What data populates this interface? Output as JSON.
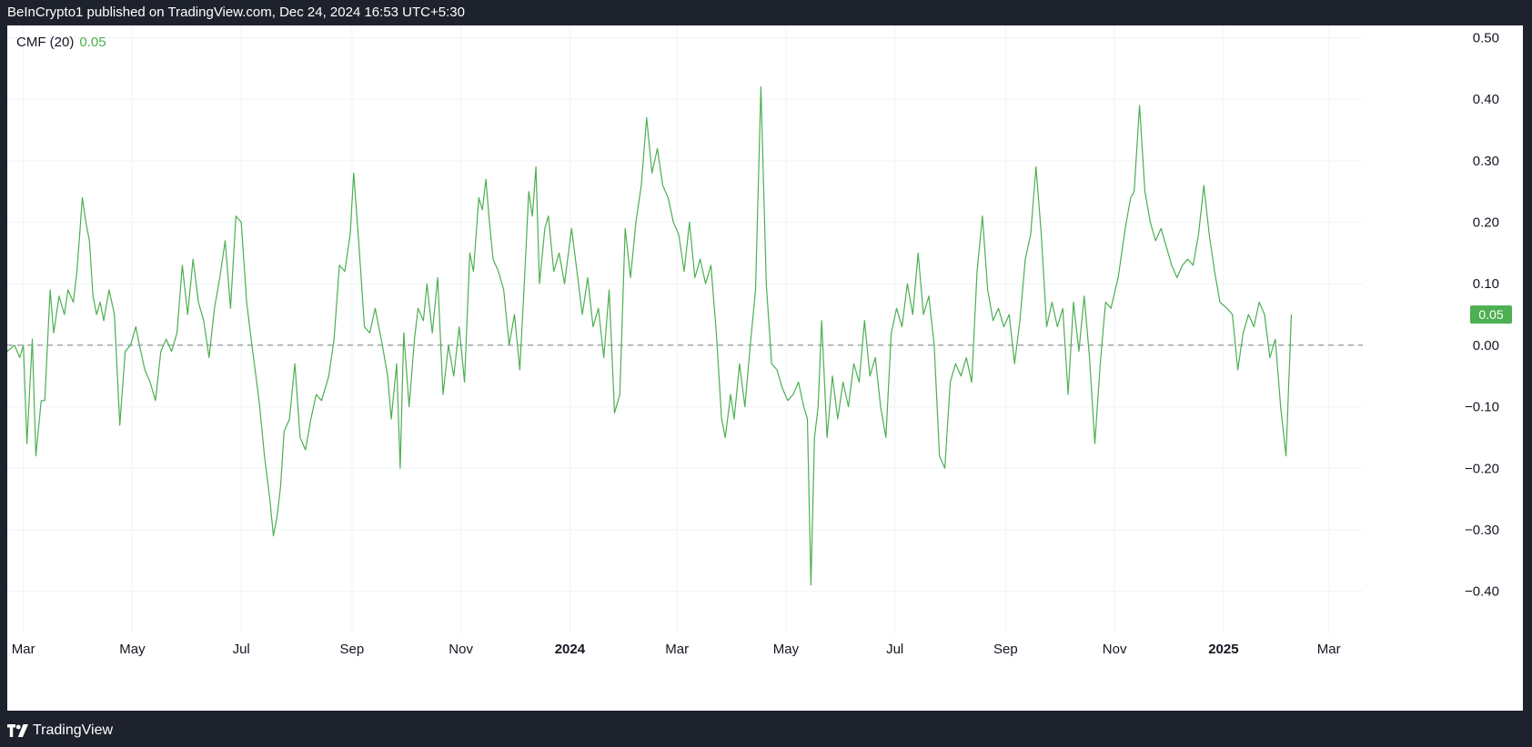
{
  "header": {
    "published_text": "BeInCrypto1 published on TradingView.com, Dec 24, 2024 16:53 UTC+5:30"
  },
  "footer": {
    "brand": "TradingView",
    "logo_icon": "tradingview-logo-icon"
  },
  "chart_data": {
    "type": "line",
    "indicator_label": "CMF (20)",
    "indicator_value": "0.05",
    "current_value_badge": "0.05",
    "line_color": "#4caf50",
    "baseline_value": 0.0,
    "ylim": [
      -0.47,
      0.52
    ],
    "y_ticks": [
      {
        "value": 0.5,
        "label": "0.50"
      },
      {
        "value": 0.4,
        "label": "0.40"
      },
      {
        "value": 0.3,
        "label": "0.30"
      },
      {
        "value": 0.2,
        "label": "0.20"
      },
      {
        "value": 0.1,
        "label": "0.10"
      },
      {
        "value": 0.0,
        "label": "0.00"
      },
      {
        "value": -0.1,
        "label": "−0.10"
      },
      {
        "value": -0.2,
        "label": "−0.20"
      },
      {
        "value": -0.3,
        "label": "−0.30"
      },
      {
        "value": -0.4,
        "label": "−0.40"
      }
    ],
    "x_range": [
      "2023-02-20",
      "2025-03-20"
    ],
    "x_ticks": [
      {
        "date": "2023-03-01",
        "label": "Mar",
        "bold": false
      },
      {
        "date": "2023-05-01",
        "label": "May",
        "bold": false
      },
      {
        "date": "2023-07-01",
        "label": "Jul",
        "bold": false
      },
      {
        "date": "2023-09-01",
        "label": "Sep",
        "bold": false
      },
      {
        "date": "2023-11-01",
        "label": "Nov",
        "bold": false
      },
      {
        "date": "2024-01-01",
        "label": "2024",
        "bold": true
      },
      {
        "date": "2024-03-01",
        "label": "Mar",
        "bold": false
      },
      {
        "date": "2024-05-01",
        "label": "May",
        "bold": false
      },
      {
        "date": "2024-07-01",
        "label": "Jul",
        "bold": false
      },
      {
        "date": "2024-09-01",
        "label": "Sep",
        "bold": false
      },
      {
        "date": "2024-11-01",
        "label": "Nov",
        "bold": false
      },
      {
        "date": "2025-01-01",
        "label": "2025",
        "bold": true
      },
      {
        "date": "2025-03-01",
        "label": "Mar",
        "bold": false
      }
    ],
    "grid": true,
    "series": [
      {
        "points": [
          [
            "2023-02-17",
            0.04
          ],
          [
            "2023-02-20",
            -0.01
          ],
          [
            "2023-02-24",
            0.0
          ],
          [
            "2023-02-27",
            -0.02
          ],
          [
            "2023-03-01",
            0.0
          ],
          [
            "2023-03-03",
            -0.16
          ],
          [
            "2023-03-06",
            0.01
          ],
          [
            "2023-03-08",
            -0.18
          ],
          [
            "2023-03-11",
            -0.09
          ],
          [
            "2023-03-13",
            -0.09
          ],
          [
            "2023-03-16",
            0.09
          ],
          [
            "2023-03-18",
            0.02
          ],
          [
            "2023-03-21",
            0.08
          ],
          [
            "2023-03-24",
            0.05
          ],
          [
            "2023-03-26",
            0.09
          ],
          [
            "2023-03-29",
            0.07
          ],
          [
            "2023-03-31",
            0.12
          ],
          [
            "2023-04-03",
            0.24
          ],
          [
            "2023-04-05",
            0.2
          ],
          [
            "2023-04-07",
            0.17
          ],
          [
            "2023-04-09",
            0.08
          ],
          [
            "2023-04-11",
            0.05
          ],
          [
            "2023-04-13",
            0.07
          ],
          [
            "2023-04-15",
            0.04
          ],
          [
            "2023-04-18",
            0.09
          ],
          [
            "2023-04-21",
            0.05
          ],
          [
            "2023-04-24",
            -0.13
          ],
          [
            "2023-04-27",
            -0.01
          ],
          [
            "2023-04-30",
            0.0
          ],
          [
            "2023-05-03",
            0.03
          ],
          [
            "2023-05-05",
            0.0
          ],
          [
            "2023-05-08",
            -0.04
          ],
          [
            "2023-05-11",
            -0.06
          ],
          [
            "2023-05-14",
            -0.09
          ],
          [
            "2023-05-17",
            -0.01
          ],
          [
            "2023-05-20",
            0.01
          ],
          [
            "2023-05-23",
            -0.01
          ],
          [
            "2023-05-26",
            0.02
          ],
          [
            "2023-05-29",
            0.13
          ],
          [
            "2023-06-01",
            0.05
          ],
          [
            "2023-06-04",
            0.14
          ],
          [
            "2023-06-07",
            0.07
          ],
          [
            "2023-06-10",
            0.04
          ],
          [
            "2023-06-13",
            -0.02
          ],
          [
            "2023-06-16",
            0.06
          ],
          [
            "2023-06-19",
            0.11
          ],
          [
            "2023-06-22",
            0.17
          ],
          [
            "2023-06-25",
            0.06
          ],
          [
            "2023-06-28",
            0.21
          ],
          [
            "2023-07-01",
            0.2
          ],
          [
            "2023-07-04",
            0.07
          ],
          [
            "2023-07-07",
            0.0
          ],
          [
            "2023-07-11",
            -0.09
          ],
          [
            "2023-07-14",
            -0.18
          ],
          [
            "2023-07-17",
            -0.25
          ],
          [
            "2023-07-19",
            -0.31
          ],
          [
            "2023-07-21",
            -0.28
          ],
          [
            "2023-07-23",
            -0.23
          ],
          [
            "2023-07-25",
            -0.14
          ],
          [
            "2023-07-28",
            -0.12
          ],
          [
            "2023-07-31",
            -0.03
          ],
          [
            "2023-08-03",
            -0.15
          ],
          [
            "2023-08-06",
            -0.17
          ],
          [
            "2023-08-09",
            -0.12
          ],
          [
            "2023-08-12",
            -0.08
          ],
          [
            "2023-08-15",
            -0.09
          ],
          [
            "2023-08-19",
            -0.05
          ],
          [
            "2023-08-22",
            0.01
          ],
          [
            "2023-08-25",
            0.13
          ],
          [
            "2023-08-28",
            0.12
          ],
          [
            "2023-08-31",
            0.18
          ],
          [
            "2023-09-02",
            0.28
          ],
          [
            "2023-09-05",
            0.16
          ],
          [
            "2023-09-08",
            0.03
          ],
          [
            "2023-09-11",
            0.02
          ],
          [
            "2023-09-14",
            0.06
          ],
          [
            "2023-09-18",
            0.0
          ],
          [
            "2023-09-21",
            -0.05
          ],
          [
            "2023-09-23",
            -0.12
          ],
          [
            "2023-09-26",
            -0.03
          ],
          [
            "2023-09-28",
            -0.2
          ],
          [
            "2023-09-30",
            0.02
          ],
          [
            "2023-10-03",
            -0.1
          ],
          [
            "2023-10-06",
            0.01
          ],
          [
            "2023-10-08",
            0.06
          ],
          [
            "2023-10-11",
            0.04
          ],
          [
            "2023-10-13",
            0.1
          ],
          [
            "2023-10-16",
            0.02
          ],
          [
            "2023-10-19",
            0.11
          ],
          [
            "2023-10-22",
            -0.08
          ],
          [
            "2023-10-25",
            0.0
          ],
          [
            "2023-10-28",
            -0.05
          ],
          [
            "2023-10-31",
            0.03
          ],
          [
            "2023-11-03",
            -0.06
          ],
          [
            "2023-11-06",
            0.15
          ],
          [
            "2023-11-08",
            0.12
          ],
          [
            "2023-11-11",
            0.24
          ],
          [
            "2023-11-13",
            0.22
          ],
          [
            "2023-11-15",
            0.27
          ],
          [
            "2023-11-17",
            0.2
          ],
          [
            "2023-11-19",
            0.14
          ],
          [
            "2023-11-22",
            0.12
          ],
          [
            "2023-11-25",
            0.09
          ],
          [
            "2023-11-28",
            0.0
          ],
          [
            "2023-12-01",
            0.05
          ],
          [
            "2023-12-04",
            -0.04
          ],
          [
            "2023-12-07",
            0.13
          ],
          [
            "2023-12-09",
            0.25
          ],
          [
            "2023-12-11",
            0.21
          ],
          [
            "2023-12-13",
            0.29
          ],
          [
            "2023-12-15",
            0.1
          ],
          [
            "2023-12-18",
            0.19
          ],
          [
            "2023-12-20",
            0.21
          ],
          [
            "2023-12-23",
            0.12
          ],
          [
            "2023-12-26",
            0.15
          ],
          [
            "2023-12-29",
            0.1
          ],
          [
            "2024-01-02",
            0.19
          ],
          [
            "2024-01-05",
            0.12
          ],
          [
            "2024-01-08",
            0.05
          ],
          [
            "2024-01-11",
            0.11
          ],
          [
            "2024-01-14",
            0.03
          ],
          [
            "2024-01-17",
            0.06
          ],
          [
            "2024-01-20",
            -0.02
          ],
          [
            "2024-01-23",
            0.09
          ],
          [
            "2024-01-26",
            -0.11
          ],
          [
            "2024-01-29",
            -0.08
          ],
          [
            "2024-02-01",
            0.19
          ],
          [
            "2024-02-04",
            0.11
          ],
          [
            "2024-02-07",
            0.2
          ],
          [
            "2024-02-10",
            0.26
          ],
          [
            "2024-02-13",
            0.37
          ],
          [
            "2024-02-16",
            0.28
          ],
          [
            "2024-02-19",
            0.32
          ],
          [
            "2024-02-22",
            0.26
          ],
          [
            "2024-02-25",
            0.24
          ],
          [
            "2024-02-28",
            0.2
          ],
          [
            "2024-03-02",
            0.18
          ],
          [
            "2024-03-05",
            0.12
          ],
          [
            "2024-03-08",
            0.2
          ],
          [
            "2024-03-11",
            0.11
          ],
          [
            "2024-03-14",
            0.14
          ],
          [
            "2024-03-17",
            0.1
          ],
          [
            "2024-03-20",
            0.13
          ],
          [
            "2024-03-23",
            0.02
          ],
          [
            "2024-03-26",
            -0.12
          ],
          [
            "2024-03-28",
            -0.15
          ],
          [
            "2024-03-31",
            -0.08
          ],
          [
            "2024-04-02",
            -0.12
          ],
          [
            "2024-04-05",
            -0.03
          ],
          [
            "2024-04-08",
            -0.1
          ],
          [
            "2024-04-11",
            0.0
          ],
          [
            "2024-04-14",
            0.09
          ],
          [
            "2024-04-17",
            0.42
          ],
          [
            "2024-04-20",
            0.1
          ],
          [
            "2024-04-23",
            -0.03
          ],
          [
            "2024-04-26",
            -0.04
          ],
          [
            "2024-04-29",
            -0.07
          ],
          [
            "2024-05-02",
            -0.09
          ],
          [
            "2024-05-05",
            -0.08
          ],
          [
            "2024-05-08",
            -0.06
          ],
          [
            "2024-05-11",
            -0.1
          ],
          [
            "2024-05-13",
            -0.12
          ],
          [
            "2024-05-15",
            -0.39
          ],
          [
            "2024-05-17",
            -0.15
          ],
          [
            "2024-05-19",
            -0.1
          ],
          [
            "2024-05-21",
            0.04
          ],
          [
            "2024-05-24",
            -0.15
          ],
          [
            "2024-05-27",
            -0.05
          ],
          [
            "2024-05-30",
            -0.12
          ],
          [
            "2024-06-02",
            -0.06
          ],
          [
            "2024-06-05",
            -0.1
          ],
          [
            "2024-06-08",
            -0.03
          ],
          [
            "2024-06-11",
            -0.06
          ],
          [
            "2024-06-14",
            0.04
          ],
          [
            "2024-06-17",
            -0.05
          ],
          [
            "2024-06-20",
            -0.02
          ],
          [
            "2024-06-23",
            -0.1
          ],
          [
            "2024-06-26",
            -0.15
          ],
          [
            "2024-06-29",
            0.02
          ],
          [
            "2024-07-02",
            0.06
          ],
          [
            "2024-07-05",
            0.03
          ],
          [
            "2024-07-08",
            0.1
          ],
          [
            "2024-07-11",
            0.05
          ],
          [
            "2024-07-14",
            0.15
          ],
          [
            "2024-07-17",
            0.05
          ],
          [
            "2024-07-20",
            0.08
          ],
          [
            "2024-07-23",
            0.0
          ],
          [
            "2024-07-26",
            -0.18
          ],
          [
            "2024-07-29",
            -0.2
          ],
          [
            "2024-08-01",
            -0.06
          ],
          [
            "2024-08-04",
            -0.03
          ],
          [
            "2024-08-07",
            -0.05
          ],
          [
            "2024-08-10",
            -0.02
          ],
          [
            "2024-08-13",
            -0.06
          ],
          [
            "2024-08-16",
            0.12
          ],
          [
            "2024-08-19",
            0.21
          ],
          [
            "2024-08-22",
            0.09
          ],
          [
            "2024-08-25",
            0.04
          ],
          [
            "2024-08-28",
            0.06
          ],
          [
            "2024-08-31",
            0.03
          ],
          [
            "2024-09-03",
            0.05
          ],
          [
            "2024-09-06",
            -0.03
          ],
          [
            "2024-09-09",
            0.04
          ],
          [
            "2024-09-12",
            0.14
          ],
          [
            "2024-09-15",
            0.18
          ],
          [
            "2024-09-18",
            0.29
          ],
          [
            "2024-09-21",
            0.18
          ],
          [
            "2024-09-24",
            0.03
          ],
          [
            "2024-09-27",
            0.07
          ],
          [
            "2024-09-30",
            0.03
          ],
          [
            "2024-10-03",
            0.06
          ],
          [
            "2024-10-06",
            -0.08
          ],
          [
            "2024-10-09",
            0.07
          ],
          [
            "2024-10-12",
            -0.01
          ],
          [
            "2024-10-15",
            0.08
          ],
          [
            "2024-10-18",
            -0.02
          ],
          [
            "2024-10-21",
            -0.16
          ],
          [
            "2024-10-24",
            -0.03
          ],
          [
            "2024-10-27",
            0.07
          ],
          [
            "2024-10-30",
            0.06
          ],
          [
            "2024-11-03",
            0.11
          ],
          [
            "2024-11-07",
            0.19
          ],
          [
            "2024-11-10",
            0.24
          ],
          [
            "2024-11-12",
            0.25
          ],
          [
            "2024-11-15",
            0.39
          ],
          [
            "2024-11-18",
            0.25
          ],
          [
            "2024-11-21",
            0.2
          ],
          [
            "2024-11-24",
            0.17
          ],
          [
            "2024-11-27",
            0.19
          ],
          [
            "2024-11-30",
            0.16
          ],
          [
            "2024-12-03",
            0.13
          ],
          [
            "2024-12-06",
            0.11
          ],
          [
            "2024-12-09",
            0.13
          ],
          [
            "2024-12-12",
            0.14
          ],
          [
            "2024-12-15",
            0.13
          ],
          [
            "2024-12-18",
            0.18
          ],
          [
            "2024-12-21",
            0.26
          ],
          [
            "2024-12-24",
            0.18
          ],
          [
            "2024-12-27",
            0.12
          ],
          [
            "2024-12-30",
            0.07
          ],
          [
            "2025-01-03",
            0.06
          ],
          [
            "2025-01-06",
            0.05
          ],
          [
            "2025-01-09",
            -0.04
          ],
          [
            "2025-01-12",
            0.02
          ],
          [
            "2025-01-15",
            0.05
          ],
          [
            "2025-01-18",
            0.03
          ],
          [
            "2025-01-21",
            0.07
          ],
          [
            "2025-01-24",
            0.05
          ],
          [
            "2025-01-27",
            -0.02
          ],
          [
            "2025-01-30",
            0.01
          ],
          [
            "2025-02-02",
            -0.1
          ],
          [
            "2025-02-05",
            -0.18
          ],
          [
            "2025-02-08",
            0.05
          ]
        ]
      }
    ]
  }
}
